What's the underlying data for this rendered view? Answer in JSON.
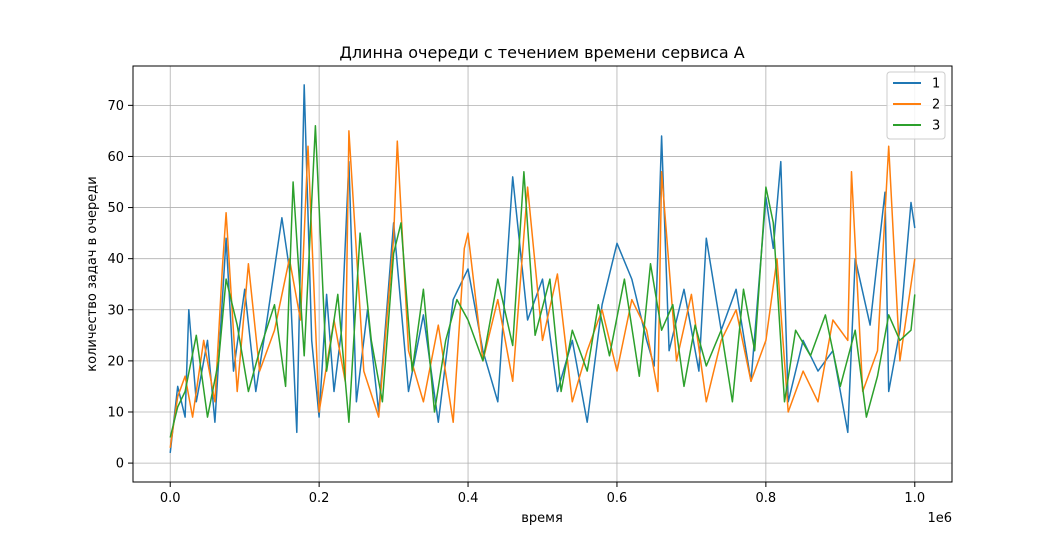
{
  "chart_data": {
    "type": "line",
    "title": "Длинна очереди с течением времени сервиса А",
    "xlabel": "время",
    "ylabel": "количество задач в очереди",
    "x_offset_label": "1e6",
    "xlim": [
      -50000,
      1050000
    ],
    "ylim": [
      -3.7,
      77.7
    ],
    "x_ticks": [
      0,
      200000,
      400000,
      600000,
      800000,
      1000000
    ],
    "x_tick_labels": [
      "0.0",
      "0.2",
      "0.4",
      "0.6",
      "0.8",
      "1.0"
    ],
    "y_ticks": [
      0,
      10,
      20,
      30,
      40,
      50,
      60,
      70
    ],
    "y_tick_labels": [
      "0",
      "10",
      "20",
      "30",
      "40",
      "50",
      "60",
      "70"
    ],
    "grid": true,
    "legend_position": "top-right",
    "series": [
      {
        "name": "1",
        "color": "#1f77b4",
        "x": [
          0,
          10000,
          20000,
          25000,
          35000,
          50000,
          60000,
          75000,
          85000,
          100000,
          115000,
          130000,
          150000,
          160000,
          170000,
          180000,
          190000,
          200000,
          210000,
          220000,
          230000,
          240000,
          250000,
          265000,
          280000,
          300000,
          320000,
          340000,
          360000,
          380000,
          400000,
          420000,
          440000,
          460000,
          480000,
          500000,
          520000,
          540000,
          560000,
          580000,
          600000,
          620000,
          640000,
          650000,
          660000,
          670000,
          690000,
          710000,
          720000,
          740000,
          760000,
          780000,
          800000,
          810000,
          820000,
          830000,
          850000,
          870000,
          890000,
          910000,
          920000,
          940000,
          960000,
          965000,
          980000,
          995000,
          1000000
        ],
        "y": [
          2,
          15,
          9,
          30,
          12,
          24,
          8,
          44,
          18,
          34,
          14,
          28,
          48,
          38,
          6,
          74,
          24,
          9,
          33,
          14,
          26,
          59,
          12,
          30,
          10,
          47,
          14,
          29,
          8,
          32,
          38,
          22,
          12,
          56,
          28,
          36,
          14,
          24,
          8,
          31,
          43,
          36,
          24,
          19,
          64,
          22,
          34,
          18,
          44,
          26,
          34,
          16,
          52,
          42,
          59,
          12,
          24,
          18,
          22,
          6,
          40,
          27,
          53,
          14,
          26,
          51,
          46
        ]
      },
      {
        "name": "2",
        "color": "#ff7f0e",
        "x": [
          0,
          10000,
          20000,
          30000,
          45000,
          60000,
          70000,
          75000,
          90000,
          105000,
          120000,
          140000,
          160000,
          175000,
          185000,
          200000,
          220000,
          235000,
          240000,
          260000,
          280000,
          300000,
          305000,
          320000,
          340000,
          360000,
          380000,
          395000,
          400000,
          420000,
          440000,
          460000,
          480000,
          500000,
          520000,
          540000,
          560000,
          580000,
          600000,
          620000,
          640000,
          655000,
          660000,
          680000,
          700000,
          720000,
          740000,
          760000,
          780000,
          800000,
          815000,
          830000,
          850000,
          870000,
          890000,
          910000,
          915000,
          930000,
          950000,
          965000,
          980000,
          1000000
        ],
        "y": [
          3,
          13,
          17,
          9,
          24,
          12,
          38,
          49,
          14,
          39,
          18,
          26,
          40,
          28,
          62,
          10,
          28,
          16,
          65,
          18,
          9,
          44,
          63,
          22,
          12,
          27,
          8,
          42,
          45,
          20,
          32,
          16,
          54,
          24,
          37,
          12,
          22,
          30,
          18,
          32,
          26,
          14,
          57,
          20,
          33,
          12,
          24,
          30,
          16,
          24,
          40,
          10,
          18,
          12,
          28,
          24,
          57,
          14,
          22,
          62,
          20,
          40
        ]
      },
      {
        "name": "3",
        "color": "#2ca02c",
        "x": [
          0,
          10000,
          20000,
          35000,
          50000,
          65000,
          75000,
          90000,
          105000,
          120000,
          140000,
          155000,
          165000,
          180000,
          195000,
          210000,
          225000,
          240000,
          255000,
          270000,
          285000,
          300000,
          310000,
          325000,
          340000,
          355000,
          370000,
          385000,
          400000,
          420000,
          440000,
          460000,
          475000,
          490000,
          510000,
          525000,
          540000,
          560000,
          575000,
          590000,
          610000,
          630000,
          645000,
          660000,
          675000,
          690000,
          705000,
          720000,
          740000,
          755000,
          770000,
          785000,
          800000,
          810000,
          825000,
          840000,
          860000,
          880000,
          900000,
          920000,
          935000,
          950000,
          965000,
          980000,
          995000,
          1000000
        ],
        "y": [
          5,
          11,
          14,
          25,
          9,
          20,
          36,
          27,
          14,
          22,
          31,
          15,
          55,
          21,
          66,
          18,
          33,
          8,
          45,
          24,
          12,
          41,
          47,
          18,
          34,
          10,
          24,
          32,
          28,
          20,
          36,
          23,
          57,
          25,
          36,
          14,
          26,
          18,
          31,
          21,
          36,
          17,
          39,
          26,
          31,
          15,
          27,
          19,
          26,
          12,
          34,
          22,
          54,
          47,
          12,
          26,
          21,
          29,
          15,
          26,
          9,
          17,
          29,
          24,
          26,
          33
        ]
      }
    ]
  }
}
